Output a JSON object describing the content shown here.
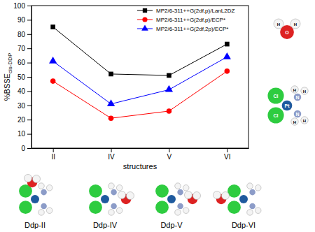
{
  "chart_data": {
    "type": "line",
    "xlabel": "structures",
    "ylabel": "%BSSE",
    "ylabel_subscript": "cis-DDP",
    "categories": [
      "II",
      "IV",
      "V",
      "VI"
    ],
    "series": [
      {
        "name": "MP2/6-311++G(2df,p)/LanL2DZ",
        "color": "#000000",
        "marker": "square",
        "values": [
          85,
          52,
          51,
          73
        ]
      },
      {
        "name": "MP2/6-311++G(2df,p)/ECP*",
        "color": "#ff0000",
        "marker": "circle",
        "values": [
          47,
          21,
          26,
          54
        ]
      },
      {
        "name": "MP2/6-311++G(2df,2p)/ECP*",
        "color": "#0000ff",
        "marker": "triangle",
        "values": [
          61,
          31,
          41,
          64
        ]
      }
    ],
    "ylim": [
      0,
      100
    ],
    "yticks": [
      0,
      10,
      20,
      30,
      40,
      50,
      60,
      70,
      80,
      90,
      100
    ],
    "legend": "upper right",
    "grid": false,
    "annotations": {
      "structures": [
        "Ddp-II",
        "Ddp-IV",
        "Ddp-V",
        "Ddp-VI"
      ],
      "water_atoms": [
        "H",
        "O",
        "H"
      ],
      "cisplatin_atoms": [
        "Cl",
        "Cl",
        "Pt",
        "N",
        "N",
        "H",
        "H",
        "H",
        "H"
      ]
    }
  }
}
